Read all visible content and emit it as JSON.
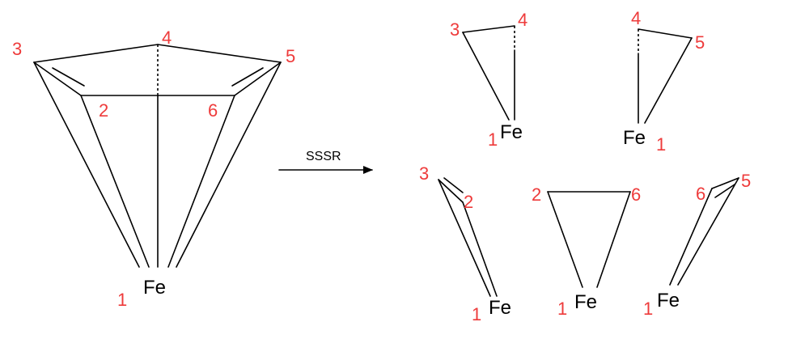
{
  "colors": {
    "number": "#ee3b3b",
    "bond": "#000000"
  },
  "atom_label": "Fe",
  "numbers": {
    "n1": "1",
    "n2": "2",
    "n3": "3",
    "n4": "4",
    "n5": "5",
    "n6": "6"
  },
  "arrow": {
    "label": "SSSR"
  }
}
